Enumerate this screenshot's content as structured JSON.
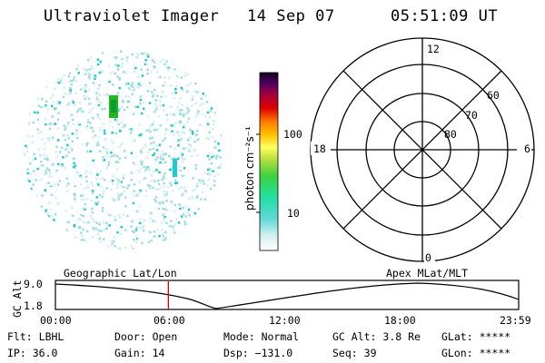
{
  "header": {
    "title": "Ultraviolet Imager",
    "date": "14 Sep 07",
    "time": "05:51:09 UT"
  },
  "colorbar": {
    "label": "photon cm⁻²s⁻¹",
    "ticks": [
      "100",
      "10"
    ]
  },
  "polar_grid": {
    "mlt_labels": [
      "12",
      "18",
      "6",
      "0"
    ],
    "mlat_labels": [
      "60",
      "70",
      "80"
    ]
  },
  "orbit_panel": {
    "left_title": "Geographic Lat/Lon",
    "right_title": "Apex MLat/MLT",
    "y_axis_label": "GC Alt",
    "y_ticks": [
      "9.0",
      "1.8"
    ],
    "x_ticks": [
      "00:00",
      "06:00",
      "12:00",
      "18:00",
      "23:59"
    ],
    "current_time_marker": "05:51:09"
  },
  "footer": {
    "row1": [
      {
        "label": "Flt:",
        "value": "LBHL"
      },
      {
        "label": "Door:",
        "value": "Open"
      },
      {
        "label": "Mode:",
        "value": "Normal"
      },
      {
        "label": "GC Alt:",
        "value": "3.8 Re"
      },
      {
        "label": "GLat:",
        "value": "*****"
      }
    ],
    "row2": [
      {
        "label": "IP:",
        "value": "36.0"
      },
      {
        "label": "Gain:",
        "value": "14"
      },
      {
        "label": "Dsp:",
        "value": "−131.0"
      },
      {
        "label": "Seq:",
        "value": "39"
      },
      {
        "label": "GLon:",
        "value": "*****"
      }
    ]
  },
  "colors": {
    "marker": "#e00000",
    "speckle": "#9fdde0",
    "speckle_bright": "#20c8d0",
    "hotspot": "#30c030"
  }
}
